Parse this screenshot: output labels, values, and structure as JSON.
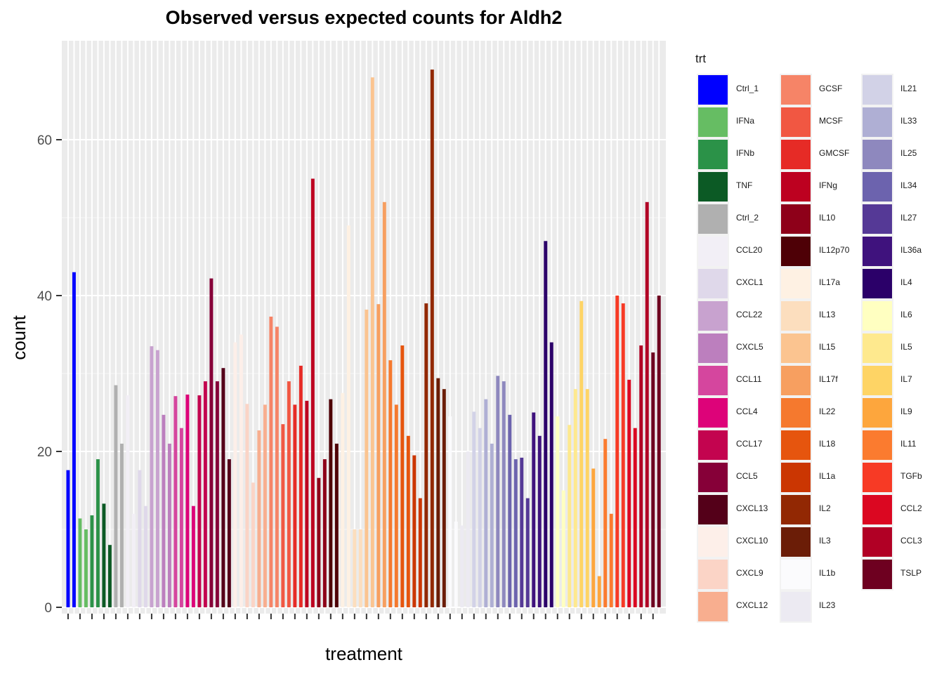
{
  "chart_data": {
    "type": "bar",
    "title": "Observed versus expected counts for Aldh2",
    "xlabel": "treatment",
    "ylabel": "count",
    "ylim": [
      0,
      70
    ],
    "yticks": [
      0,
      20,
      40,
      60
    ],
    "grid": true,
    "legend_title": "trt",
    "legend_placement": "right",
    "bars_per_treatment": 2,
    "series": [
      {
        "name": "Ctrl_1",
        "color": "#0000FF",
        "values": [
          17.6,
          43.0
        ]
      },
      {
        "name": "IFNa",
        "color": "#66BD63",
        "values": [
          11.4,
          10.0
        ]
      },
      {
        "name": "IFNb",
        "color": "#2B9248",
        "values": [
          11.8,
          19.0
        ]
      },
      {
        "name": "TNF",
        "color": "#0C5A25",
        "values": [
          13.3,
          8.0
        ]
      },
      {
        "name": "Ctrl_2",
        "color": "#B0B0B0",
        "values": [
          28.5,
          21.0
        ]
      },
      {
        "name": "CCL20",
        "color": "#F2EFF6",
        "values": [
          27.2,
          12.0
        ]
      },
      {
        "name": "CXCL1",
        "color": "#DFD8EA",
        "values": [
          17.6,
          13.0
        ]
      },
      {
        "name": "CCL22",
        "color": "#C8A2CF",
        "values": [
          33.5,
          33.0
        ]
      },
      {
        "name": "CXCL5",
        "color": "#BC7FBE",
        "values": [
          24.7,
          21.0
        ]
      },
      {
        "name": "CCL11",
        "color": "#D5469E",
        "values": [
          27.1,
          23.0
        ]
      },
      {
        "name": "CCL4",
        "color": "#DD0379",
        "values": [
          27.3,
          13.0
        ]
      },
      {
        "name": "CCL17",
        "color": "#C3044F",
        "values": [
          27.2,
          29.0
        ]
      },
      {
        "name": "CCL5",
        "color": "#860038",
        "values": [
          42.2,
          29.0
        ]
      },
      {
        "name": "CXCL13",
        "color": "#540019",
        "values": [
          30.7,
          19.0
        ]
      },
      {
        "name": "CXCL10",
        "color": "#FDEFE9",
        "values": [
          34.0,
          35.0
        ]
      },
      {
        "name": "CXCL9",
        "color": "#FBD4C6",
        "values": [
          26.1,
          16.0
        ]
      },
      {
        "name": "CXCL12",
        "color": "#F8AE8F",
        "values": [
          22.7,
          26.0
        ]
      },
      {
        "name": "GCSF",
        "color": "#F68467",
        "values": [
          37.3,
          36.0
        ]
      },
      {
        "name": "MCSF",
        "color": "#F15742",
        "values": [
          23.5,
          29.0
        ]
      },
      {
        "name": "GMCSF",
        "color": "#E62B26",
        "values": [
          26.0,
          31.0
        ]
      },
      {
        "name": "IFNg",
        "color": "#BD0120",
        "values": [
          26.5,
          55.0
        ]
      },
      {
        "name": "IL10",
        "color": "#8E0019",
        "values": [
          16.6,
          19.0
        ]
      },
      {
        "name": "IL12p70",
        "color": "#4E0006",
        "values": [
          26.7,
          21.0
        ]
      },
      {
        "name": "IL17a",
        "color": "#FEF1E3",
        "values": [
          27.5,
          49.0
        ]
      },
      {
        "name": "IL13",
        "color": "#FCDEBE",
        "values": [
          10.0,
          10.0
        ]
      },
      {
        "name": "IL15",
        "color": "#FBC490",
        "values": [
          38.2,
          68.0
        ]
      },
      {
        "name": "IL17f",
        "color": "#F79F60",
        "values": [
          38.9,
          52.0
        ]
      },
      {
        "name": "IL22",
        "color": "#F5792E",
        "values": [
          31.7,
          26.0
        ]
      },
      {
        "name": "IL18",
        "color": "#E6550E",
        "values": [
          33.6,
          22.0
        ]
      },
      {
        "name": "IL1a",
        "color": "#CB3602",
        "values": [
          19.5,
          14.0
        ]
      },
      {
        "name": "IL2",
        "color": "#922803",
        "values": [
          39.0,
          69.0
        ]
      },
      {
        "name": "IL3",
        "color": "#6B1D07",
        "values": [
          29.4,
          28.0
        ]
      },
      {
        "name": "IL1b",
        "color": "#FBFBFD",
        "values": [
          24.5,
          11.0
        ]
      },
      {
        "name": "IL23",
        "color": "#ECEAF2",
        "values": [
          10.5,
          20.0
        ]
      },
      {
        "name": "IL21",
        "color": "#D2D2E7",
        "values": [
          25.1,
          23.0
        ]
      },
      {
        "name": "IL33",
        "color": "#AFAFD4",
        "values": [
          26.7,
          21.0
        ]
      },
      {
        "name": "IL25",
        "color": "#8E88BE",
        "values": [
          29.7,
          29.0
        ]
      },
      {
        "name": "IL34",
        "color": "#6C63AE",
        "values": [
          24.7,
          19.0
        ]
      },
      {
        "name": "IL27",
        "color": "#553996",
        "values": [
          19.2,
          14.0
        ]
      },
      {
        "name": "IL36a",
        "color": "#3F127D",
        "values": [
          25.0,
          22.0
        ]
      },
      {
        "name": "IL4",
        "color": "#2B0069",
        "values": [
          47.0,
          34.0
        ]
      },
      {
        "name": "IL6",
        "color": "#FFFFC1",
        "values": [
          24.5,
          15.0
        ]
      },
      {
        "name": "IL5",
        "color": "#FEE98E",
        "values": [
          23.4,
          28.0
        ]
      },
      {
        "name": "IL7",
        "color": "#FED465",
        "values": [
          39.3,
          28.0
        ]
      },
      {
        "name": "IL9",
        "color": "#FDA63D",
        "values": [
          17.8,
          4.0
        ]
      },
      {
        "name": "IL11",
        "color": "#FB7B2F",
        "values": [
          21.6,
          12.0
        ]
      },
      {
        "name": "TGFb",
        "color": "#F73A25",
        "values": [
          40.0,
          39.0
        ]
      },
      {
        "name": "CCL2",
        "color": "#DB0721",
        "values": [
          29.2,
          23.0
        ]
      },
      {
        "name": "CCL3",
        "color": "#B10025",
        "values": [
          33.6,
          52.0
        ]
      },
      {
        "name": "TSLP",
        "color": "#6E0020",
        "values": [
          32.7,
          40.0
        ]
      }
    ]
  }
}
